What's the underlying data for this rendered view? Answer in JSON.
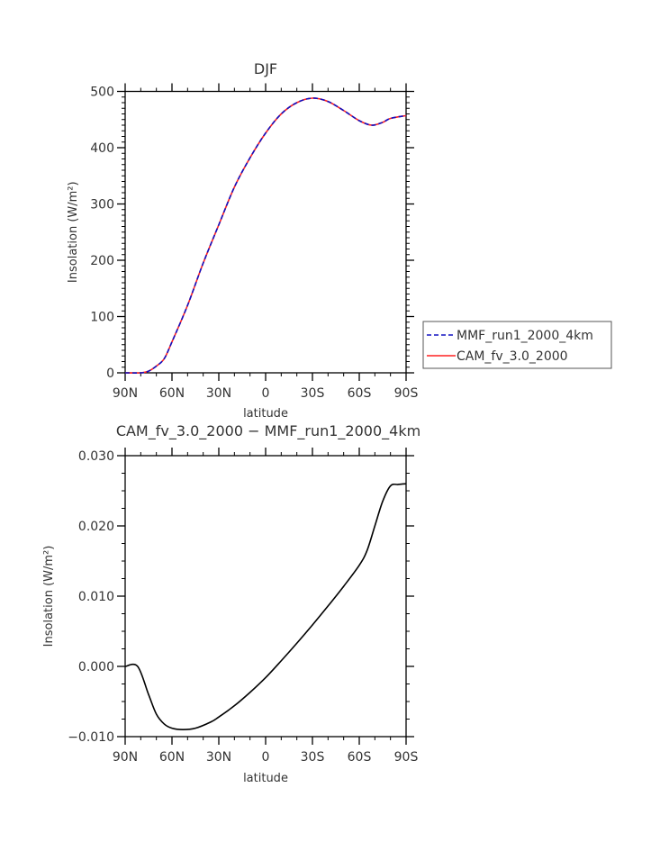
{
  "chart_data": [
    {
      "type": "line",
      "title": "DJF",
      "xlabel": "latitude",
      "ylabel": "Insolation (W/m²)",
      "xlim": [
        90,
        -90
      ],
      "ylim": [
        0,
        500
      ],
      "xticks": [
        90,
        60,
        30,
        0,
        -30,
        -60,
        -90
      ],
      "xtick_labels": [
        "90N",
        "60N",
        "30N",
        "0",
        "30S",
        "60S",
        "90S"
      ],
      "yticks": [
        0,
        100,
        200,
        300,
        400,
        500
      ],
      "ytick_labels": [
        "0",
        "100",
        "200",
        "300",
        "400",
        "500"
      ],
      "legend_placement": "right",
      "x": [
        90,
        80,
        75,
        70,
        65,
        60,
        50,
        40,
        30,
        20,
        10,
        0,
        -10,
        -20,
        -30,
        -40,
        -50,
        -60,
        -68,
        -75,
        -80,
        -90
      ],
      "series": [
        {
          "name": "MMF_run1_2000_4km",
          "color": "#1010c0",
          "style": "dashed",
          "values": [
            0,
            0,
            3,
            12,
            25,
            55,
            120,
            195,
            263,
            330,
            382,
            426,
            460,
            480,
            488,
            482,
            466,
            448,
            440,
            445,
            452,
            457
          ]
        },
        {
          "name": "CAM_fv_3.0_2000",
          "color": "#ff2020",
          "style": "solid",
          "values": [
            0,
            0,
            3,
            12,
            25,
            55,
            120,
            195,
            263,
            330,
            382,
            426,
            460,
            480,
            488,
            482,
            466,
            448,
            440,
            445,
            452,
            457
          ]
        }
      ]
    },
    {
      "type": "line",
      "title": "CAM_fv_3.0_2000 − MMF_run1_2000_4km",
      "xlabel": "latitude",
      "ylabel": "Insolation (W/m²)",
      "xlim": [
        90,
        -90
      ],
      "ylim": [
        -0.01,
        0.03
      ],
      "xticks": [
        90,
        60,
        30,
        0,
        -30,
        -60,
        -90
      ],
      "xtick_labels": [
        "90N",
        "60N",
        "30N",
        "0",
        "30S",
        "60S",
        "90S"
      ],
      "yticks": [
        -0.01,
        0.0,
        0.01,
        0.02,
        0.03
      ],
      "ytick_labels": [
        "−0.010",
        "0.000",
        "0.010",
        "0.020",
        "0.030"
      ],
      "x": [
        90,
        82,
        75,
        70,
        65,
        60,
        53,
        45,
        35,
        30,
        20,
        10,
        0,
        -10,
        -20,
        -30,
        -40,
        -50,
        -60,
        -65,
        -70,
        -75,
        -80,
        -85,
        -90
      ],
      "series": [
        {
          "color": "#000000",
          "style": "solid",
          "values": [
            0,
            0,
            -0.004,
            -0.0068,
            -0.0082,
            -0.0088,
            -0.009,
            -0.0088,
            -0.0079,
            -0.0072,
            -0.0056,
            -0.0037,
            -0.0016,
            0.0008,
            0.0033,
            0.0059,
            0.0086,
            0.0114,
            0.0144,
            0.0165,
            0.02,
            0.0235,
            0.0257,
            0.0259,
            0.026
          ]
        }
      ]
    }
  ]
}
